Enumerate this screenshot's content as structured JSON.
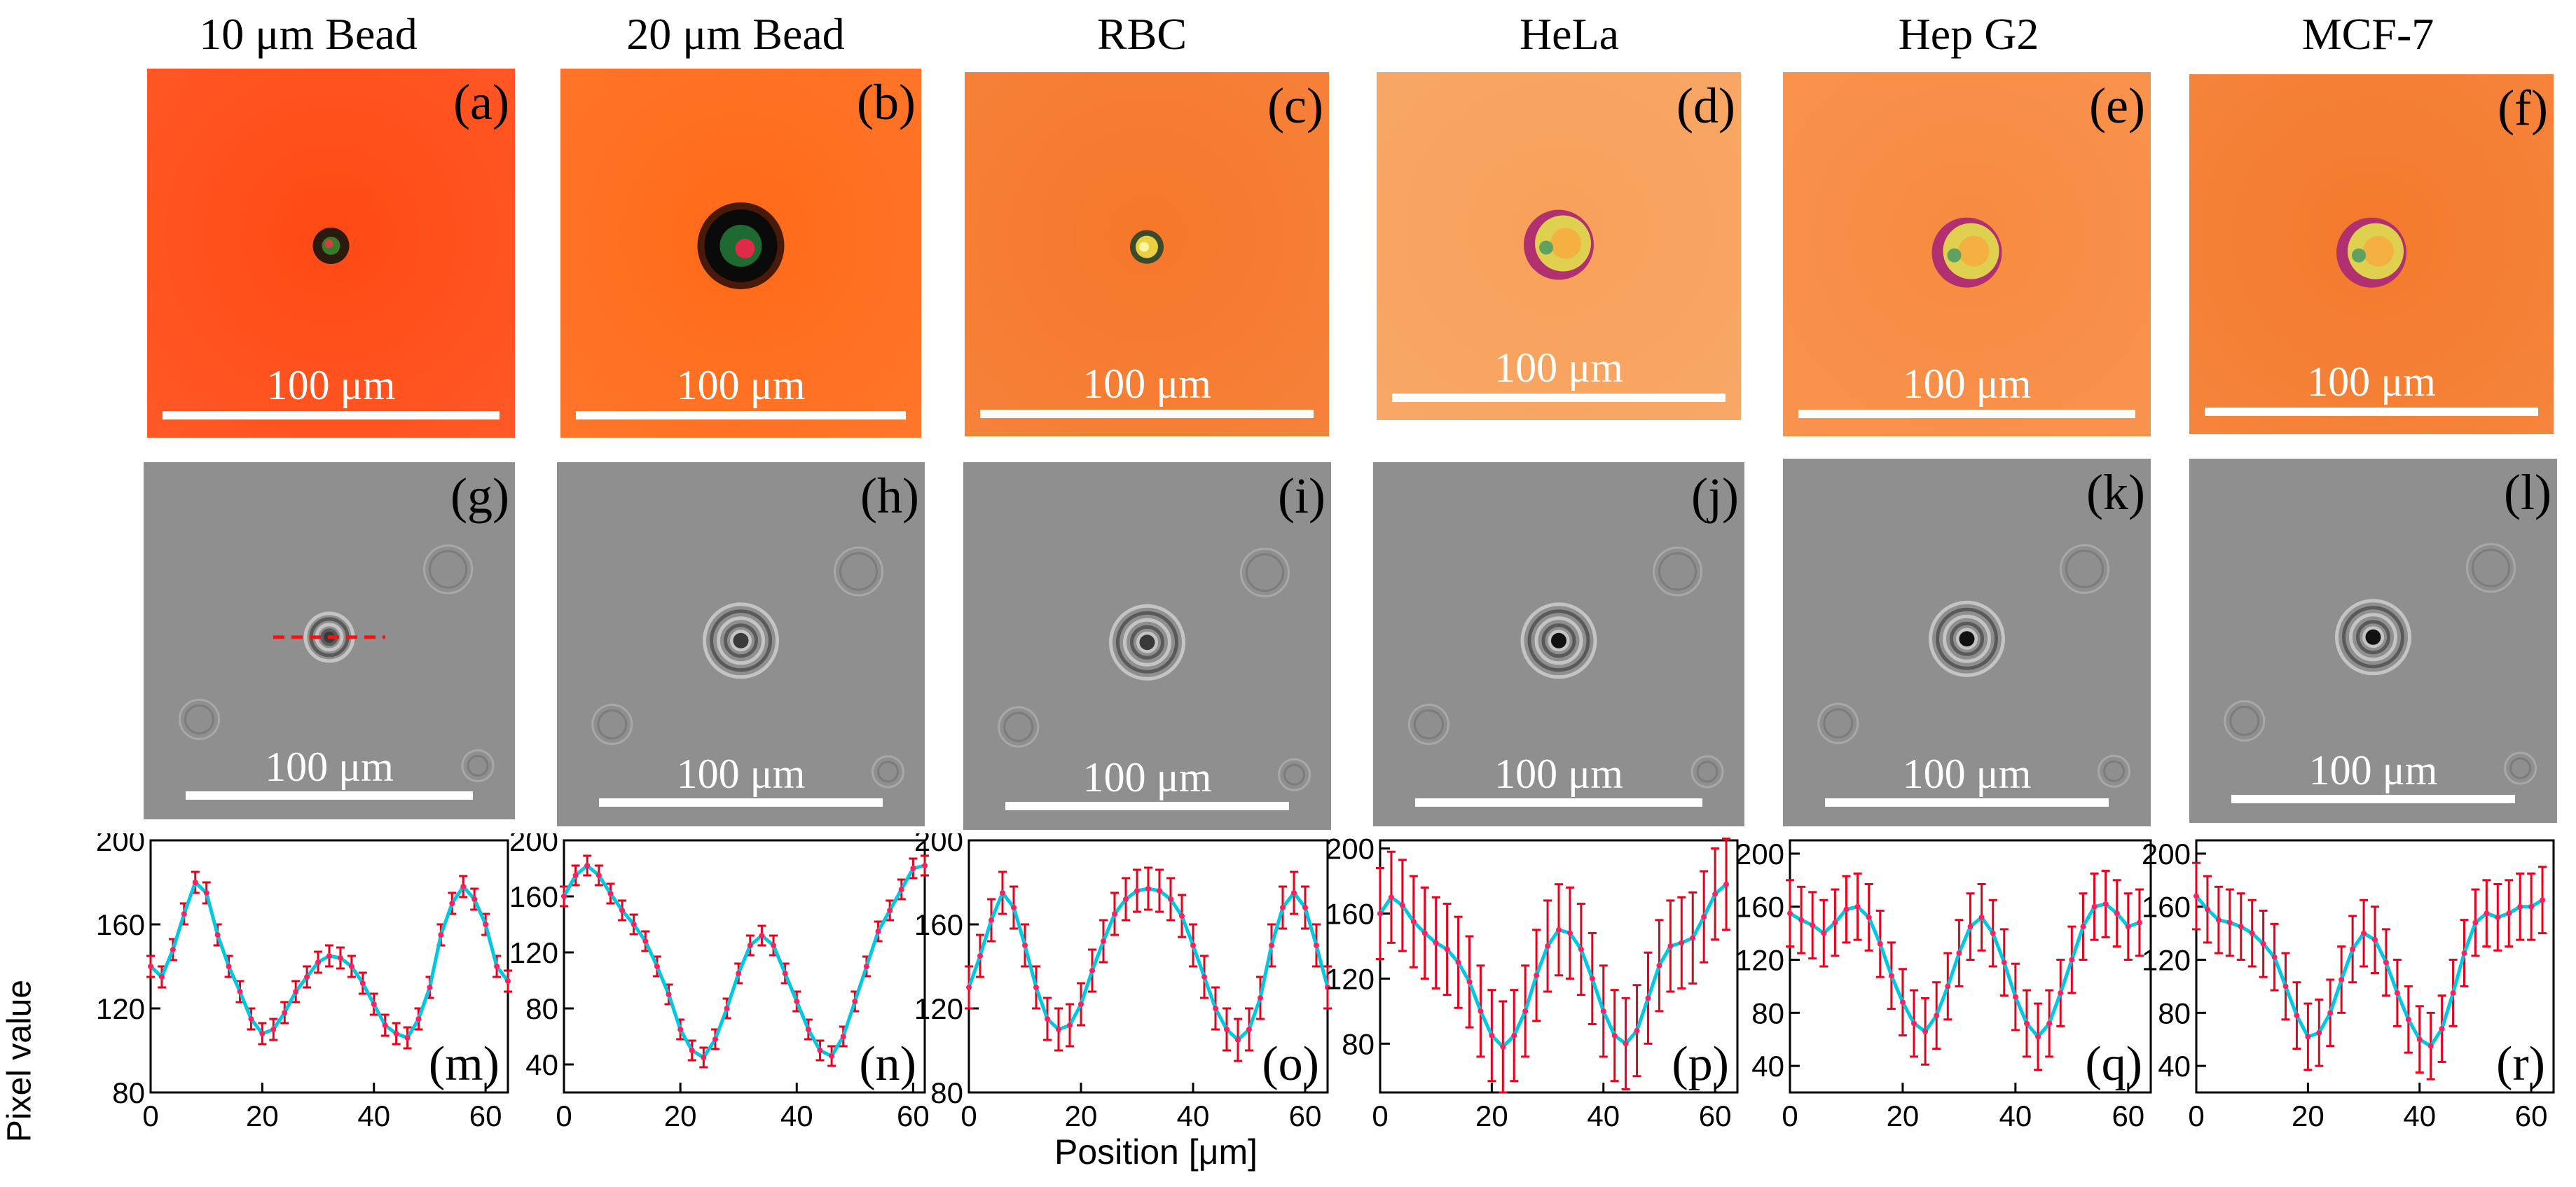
{
  "columns": [
    {
      "title": "10 μm Bead",
      "top_label": "(a)",
      "mid_label": "(g)",
      "bot_label": "(m)",
      "scale_top": "100 μm",
      "scale_mid": "100 μm",
      "top_color": "#ff4a14",
      "object": "bead_small"
    },
    {
      "title": "20 μm Bead",
      "top_label": "(b)",
      "mid_label": "(h)",
      "bot_label": "(n)",
      "scale_top": "100 μm",
      "scale_mid": "100 μm",
      "top_color": "#ff6a18",
      "object": "bead_large"
    },
    {
      "title": "RBC",
      "top_label": "(c)",
      "mid_label": "(i)",
      "bot_label": "(o)",
      "scale_top": "100 μm",
      "scale_mid": "100 μm",
      "top_color": "#f6772a",
      "object": "rbc"
    },
    {
      "title": "HeLa",
      "top_label": "(d)",
      "mid_label": "(j)",
      "bot_label": "(p)",
      "scale_top": "100 μm",
      "scale_mid": "100 μm",
      "top_color": "#f8a05a",
      "object": "cell"
    },
    {
      "title": "Hep G2",
      "top_label": "(e)",
      "mid_label": "(k)",
      "bot_label": "(q)",
      "scale_top": "100 μm",
      "scale_mid": "100 μm",
      "top_color": "#f88a40",
      "object": "cell"
    },
    {
      "title": "MCF-7",
      "top_label": "(f)",
      "mid_label": "(l)",
      "bot_label": "(r)",
      "scale_top": "100 μm",
      "scale_mid": "100 μm",
      "top_color": "#f47a2c",
      "object": "cell"
    }
  ],
  "chart_data": [
    {
      "type": "line",
      "panel": "(m)",
      "x": [
        0,
        2,
        4,
        6,
        8,
        10,
        12,
        14,
        16,
        18,
        20,
        22,
        24,
        26,
        28,
        30,
        32,
        34,
        36,
        38,
        40,
        42,
        44,
        46,
        48,
        50,
        52,
        54,
        56,
        58,
        60,
        62,
        64
      ],
      "values": [
        140,
        135,
        148,
        165,
        180,
        175,
        155,
        140,
        128,
        115,
        108,
        110,
        118,
        128,
        135,
        142,
        145,
        144,
        140,
        132,
        122,
        112,
        108,
        106,
        115,
        130,
        155,
        170,
        178,
        172,
        160,
        140,
        133
      ],
      "error": 5,
      "xlim": [
        0,
        64
      ],
      "ylim": [
        80,
        200
      ],
      "yticks": [
        80,
        120,
        160,
        200
      ],
      "xticks": [
        0,
        20,
        40,
        60
      ],
      "ylabel": "Pixel value"
    },
    {
      "type": "line",
      "panel": "(n)",
      "x": [
        0,
        2,
        4,
        6,
        8,
        10,
        12,
        14,
        16,
        18,
        20,
        22,
        24,
        26,
        28,
        30,
        32,
        34,
        36,
        38,
        40,
        42,
        44,
        46,
        48,
        50,
        52,
        54,
        56,
        58,
        60,
        62
      ],
      "values": [
        160,
        175,
        182,
        175,
        162,
        150,
        140,
        128,
        110,
        90,
        65,
        50,
        45,
        58,
        80,
        105,
        125,
        132,
        125,
        105,
        85,
        65,
        50,
        46,
        60,
        85,
        110,
        135,
        150,
        165,
        180,
        182
      ],
      "error": 7,
      "xlim": [
        0,
        62
      ],
      "ylim": [
        20,
        200
      ],
      "yticks": [
        40,
        80,
        120,
        160,
        200
      ],
      "xticks": [
        0,
        20,
        40,
        60
      ],
      "ylabel": ""
    },
    {
      "type": "line",
      "panel": "(o)",
      "x": [
        0,
        2,
        4,
        6,
        8,
        10,
        12,
        14,
        16,
        18,
        20,
        22,
        24,
        26,
        28,
        30,
        32,
        34,
        36,
        38,
        40,
        42,
        44,
        46,
        48,
        50,
        52,
        54,
        56,
        58,
        60,
        62,
        64
      ],
      "values": [
        130,
        145,
        162,
        175,
        168,
        150,
        130,
        115,
        110,
        112,
        122,
        138,
        152,
        165,
        172,
        176,
        177,
        176,
        172,
        164,
        150,
        135,
        120,
        110,
        105,
        110,
        125,
        150,
        168,
        175,
        168,
        150,
        130
      ],
      "error": 10,
      "xlim": [
        0,
        64
      ],
      "ylim": [
        80,
        200
      ],
      "yticks": [
        80,
        120,
        160,
        200
      ],
      "xticks": [
        0,
        20,
        40,
        60
      ],
      "xlabel": "Position [μm]",
      "ylabel": ""
    },
    {
      "type": "line",
      "panel": "(p)",
      "x": [
        0,
        2,
        4,
        6,
        8,
        10,
        12,
        14,
        16,
        18,
        20,
        22,
        24,
        26,
        28,
        30,
        32,
        34,
        36,
        38,
        40,
        42,
        44,
        46,
        48,
        50,
        52,
        54,
        56,
        58,
        60,
        62
      ],
      "values": [
        160,
        170,
        165,
        155,
        148,
        142,
        138,
        130,
        118,
        100,
        85,
        78,
        85,
        100,
        122,
        140,
        150,
        148,
        138,
        120,
        100,
        85,
        80,
        88,
        108,
        128,
        140,
        142,
        145,
        158,
        172,
        178
      ],
      "error": 28,
      "xlim": [
        0,
        64
      ],
      "ylim": [
        50,
        205
      ],
      "yticks": [
        80,
        120,
        160,
        200
      ],
      "xticks": [
        0,
        20,
        40,
        60
      ],
      "ylabel": ""
    },
    {
      "type": "line",
      "panel": "(q)",
      "x": [
        0,
        2,
        4,
        6,
        8,
        10,
        12,
        14,
        16,
        18,
        20,
        22,
        24,
        26,
        28,
        30,
        32,
        34,
        36,
        38,
        40,
        42,
        44,
        46,
        48,
        50,
        52,
        54,
        56,
        58,
        60,
        62
      ],
      "values": [
        155,
        150,
        146,
        140,
        148,
        158,
        160,
        152,
        132,
        108,
        88,
        72,
        66,
        78,
        100,
        125,
        145,
        152,
        140,
        118,
        92,
        72,
        62,
        72,
        95,
        120,
        145,
        160,
        162,
        155,
        145,
        148
      ],
      "error": 25,
      "xlim": [
        0,
        64
      ],
      "ylim": [
        20,
        210
      ],
      "yticks": [
        40,
        80,
        120,
        160,
        200
      ],
      "xticks": [
        0,
        20,
        40,
        60
      ],
      "ylabel": ""
    },
    {
      "type": "line",
      "panel": "(r)",
      "x": [
        0,
        2,
        4,
        6,
        8,
        10,
        12,
        14,
        16,
        18,
        20,
        22,
        24,
        26,
        28,
        30,
        32,
        34,
        36,
        38,
        40,
        42,
        44,
        46,
        48,
        50,
        52,
        54,
        56,
        58,
        60,
        62
      ],
      "values": [
        168,
        158,
        150,
        148,
        145,
        140,
        132,
        122,
        100,
        78,
        62,
        65,
        80,
        105,
        128,
        140,
        135,
        118,
        95,
        75,
        60,
        55,
        68,
        95,
        125,
        148,
        155,
        152,
        155,
        160,
        160,
        165
      ],
      "error": 25,
      "xlim": [
        0,
        64
      ],
      "ylim": [
        20,
        210
      ],
      "yticks": [
        40,
        80,
        120,
        160,
        200
      ],
      "xticks": [
        0,
        20,
        40,
        60
      ],
      "ylabel": ""
    }
  ],
  "axis": {
    "ylabel": "Pixel value",
    "xlabel": "Position [μm]"
  },
  "colors": {
    "line": "#00c8e0",
    "error": "#e8001c",
    "marker": "#ff2060",
    "mid_bg": "#8f8f8f",
    "dash": "#ff1010"
  }
}
